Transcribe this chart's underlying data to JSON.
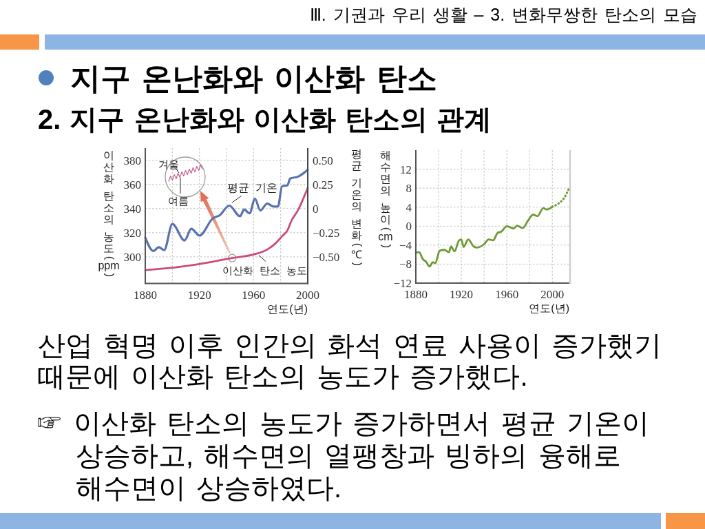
{
  "chart_data": [
    {
      "type": "other",
      "title": "지구 온난화와 이산화 탄소",
      "subtitle": "2. 지구 온난화와 이산화 탄소의 관계",
      "annotations": [
        "Ⅲ. 기권과 우리 생활 – 3. 변화무쌍한 탄소의 모습"
      ]
    },
    {
      "type": "line",
      "xlabel": "연도(년)",
      "ylabel": "이산화 탄소의 농도(ppm)",
      "y2label": "평균 기온의 변화(℃)",
      "xlim": [
        1880,
        2000
      ],
      "xticks": [
        1880,
        {
          "value": 1900,
          "label": null
        },
        1920,
        {
          "value": 1940,
          "label": null
        },
        1960,
        {
          "value": 1980,
          "label": null
        },
        2000
      ],
      "ylim": [
        278,
        390
      ],
      "yticks": [
        300,
        320,
        340,
        360,
        380
      ],
      "y2lim": [
        -0.775,
        0.625
      ],
      "y2ticks": [
        {
          "value": -0.5,
          "label": "−0.50"
        },
        {
          "value": -0.25,
          "label": "−0.25"
        },
        0,
        {
          "value": 0.25,
          "label": "0.25"
        },
        {
          "value": 0.5,
          "label": "0.50"
        }
      ],
      "grid": true,
      "annotations": [
        "겨울",
        "여름"
      ],
      "series": [
        {
          "name": "평균 기온",
          "color": "#5872ae",
          "axis": "y2",
          "x": [
            1880,
            1886,
            1890,
            1894,
            1900,
            1909,
            1914,
            1920,
            1930,
            1935,
            1942,
            1950,
            1953,
            1957,
            1961,
            1965,
            1970,
            1975,
            1978,
            1981,
            1985,
            1987,
            1993,
            2000
          ],
          "values": [
            -0.3,
            -0.44,
            -0.4,
            -0.43,
            -0.16,
            -0.33,
            -0.21,
            -0.28,
            -0.1,
            -0.07,
            0.03,
            -0.08,
            -0.01,
            -0.05,
            0.1,
            -0.02,
            0.05,
            0.02,
            0.02,
            0.23,
            0.24,
            0.31,
            0.33,
            0.4
          ]
        },
        {
          "name": "이산화 탄소 농도",
          "color": "#cc4b7e",
          "x": [
            1880,
            1900,
            1920,
            1944,
            1960,
            1970,
            1976,
            1981,
            1985,
            1988,
            1993,
            1997,
            2000
          ],
          "values": [
            289,
            291,
            294,
            299,
            302,
            306,
            311,
            317,
            322,
            330,
            339,
            349,
            357
          ]
        }
      ]
    },
    {
      "type": "line",
      "xlabel": "연도(년)",
      "ylabel": "해수면의 높이(cm)",
      "xlim": [
        1880,
        2015
      ],
      "xticks": [
        1880,
        {
          "value": 1900,
          "label": null
        },
        1920,
        {
          "value": 1940,
          "label": null
        },
        1960,
        {
          "value": 1980,
          "label": null
        },
        2000
      ],
      "ylim": [
        -12,
        16
      ],
      "yticks": [
        {
          "value": -12,
          "label": "−12"
        },
        {
          "value": -8,
          "label": "−8"
        },
        {
          "value": -4,
          "label": "−4"
        },
        0,
        4,
        8,
        12
      ],
      "grid": true,
      "series": [
        {
          "color": "#6c9a34",
          "x": [
            1880,
            1883,
            1886,
            1889,
            1892,
            1895,
            1897,
            1901,
            1905,
            1909,
            1911,
            1914,
            1918,
            1920,
            1922,
            1926,
            1931,
            1934,
            1940,
            1944,
            1948,
            1952,
            1955,
            1960,
            1966,
            1969,
            1974,
            1979,
            1983,
            1987,
            1992,
            1995,
            2000
          ],
          "values": [
            -5.6,
            -5.5,
            -6.9,
            -7.5,
            -8.5,
            -7.6,
            -7.8,
            -5.2,
            -5.0,
            -5.5,
            -4.3,
            -5.3,
            -3.0,
            -2.8,
            -4.4,
            -2.8,
            -4.3,
            -4.5,
            -3.8,
            -2.8,
            -3.0,
            -1.4,
            -1.2,
            0.0,
            -0.5,
            0.1,
            -0.4,
            1.3,
            2.4,
            2.1,
            3.8,
            3.5,
            4.1
          ]
        },
        {
          "color": "#6c9a34",
          "line_style": "dotted",
          "x": [
            2000,
            2005,
            2010,
            2015
          ],
          "values": [
            4.1,
            4.7,
            5.8,
            8.1
          ]
        }
      ]
    },
    {
      "type": "other",
      "annotations": [
        "산업 혁명 이후 인간의 화석 연료 사용이 증가했기 때문에 이산화 탄소의 농도가 증가했다.",
        "☞ 이산화 탄소의 농도가 증가하면서 평균 기온이 상승하고, 해수면의 열팽창과 빙하의 융해로 해수면이 상승하였다."
      ]
    }
  ]
}
